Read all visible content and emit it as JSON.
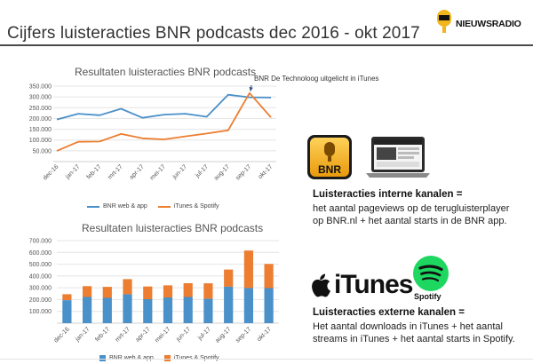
{
  "slide": {
    "title": "Cijfers luisteracties BNR podcasts dec 2016 - okt 2017",
    "logo_text": "NIEUWSRADIO"
  },
  "chart_data": [
    {
      "type": "line",
      "title": "Resultaten luisteracties BNR podcasts",
      "categories": [
        "dec-16",
        "jan-17",
        "feb-17",
        "mrt-17",
        "apr-17",
        "mei-17",
        "jun-17",
        "jul-17",
        "aug-17",
        "sep-17",
        "okt-17"
      ],
      "series": [
        {
          "name": "BNR web & app",
          "color": "#4a90c9",
          "values": [
            195000,
            222000,
            215000,
            245000,
            203000,
            218000,
            222000,
            208000,
            310000,
            298000,
            297000
          ]
        },
        {
          "name": "iTunes & Spotify",
          "color": "#ec7d31",
          "values": [
            50000,
            92000,
            93000,
            128000,
            108000,
            103000,
            117000,
            130000,
            145000,
            318000,
            205000
          ]
        }
      ],
      "ylim": [
        0,
        350000
      ],
      "yticks": [
        "50.000",
        "100.000",
        "150.000",
        "200.000",
        "250.000",
        "300.000",
        "350.000"
      ],
      "grid": true,
      "legend": "bottom",
      "annotation": "BNR De Technoloog uitgelicht in iTunes"
    },
    {
      "type": "bar",
      "stacked": true,
      "title": "Resultaten luisteracties BNR podcasts",
      "categories": [
        "dec-16",
        "jan-17",
        "feb-17",
        "mrt-17",
        "apr-17",
        "mei-17",
        "jun-17",
        "jul-17",
        "aug-17",
        "sep-17",
        "okt-17"
      ],
      "series": [
        {
          "name": "BNR web & app",
          "color": "#4a90c9",
          "values": [
            195000,
            222000,
            215000,
            245000,
            203000,
            218000,
            222000,
            208000,
            310000,
            298000,
            297000
          ]
        },
        {
          "name": "iTunes & Spotify",
          "color": "#ec7d31",
          "values": [
            50000,
            92000,
            93000,
            128000,
            108000,
            103000,
            117000,
            130000,
            145000,
            318000,
            205000
          ]
        }
      ],
      "ylim": [
        0,
        700000
      ],
      "yticks": [
        "100.000",
        "200.000",
        "300.000",
        "400.000",
        "500.000",
        "600.000",
        "700.000"
      ],
      "grid": true,
      "legend": "bottom"
    }
  ],
  "right_panel": {
    "internal_heading": "Luisteracties interne kanalen  =",
    "internal_text": "het aantal pageviews op de terugluisterplayer op BNR.nl + het aantal starts in de BNR app.",
    "bnr_icon_label": "BNR",
    "itunes_label": "iTunes",
    "spotify_label": "Spotify",
    "external_heading": "Luisteracties externe kanalen =",
    "external_text": "Het aantal downloads in iTunes + het aantal streams in iTunes + het aantal starts in Spotify."
  }
}
